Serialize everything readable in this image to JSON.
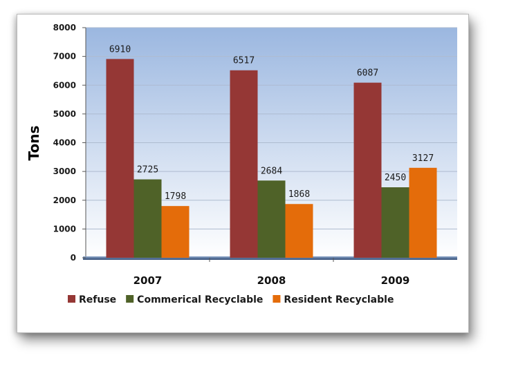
{
  "chart_data": {
    "type": "bar",
    "categories": [
      "2007",
      "2008",
      "2009"
    ],
    "series": [
      {
        "name": "Refuse",
        "values": [
          6910,
          6517,
          6087
        ],
        "color": "#953735"
      },
      {
        "name": "Commerical Recyclable",
        "values": [
          2725,
          2684,
          2450
        ],
        "color": "#4f6228"
      },
      {
        "name": "Resident Recyclable",
        "values": [
          1798,
          1868,
          3127
        ],
        "color": "#e46c0a"
      }
    ],
    "title": "",
    "xlabel": "",
    "ylabel": "Tons",
    "ylim": [
      0,
      8000
    ],
    "yticks": [
      0,
      1000,
      2000,
      3000,
      4000,
      5000,
      6000,
      7000,
      8000
    ],
    "grid": true,
    "legend_position": "bottom",
    "plot_background": [
      "#9bb7e0",
      "#ffffff"
    ]
  }
}
